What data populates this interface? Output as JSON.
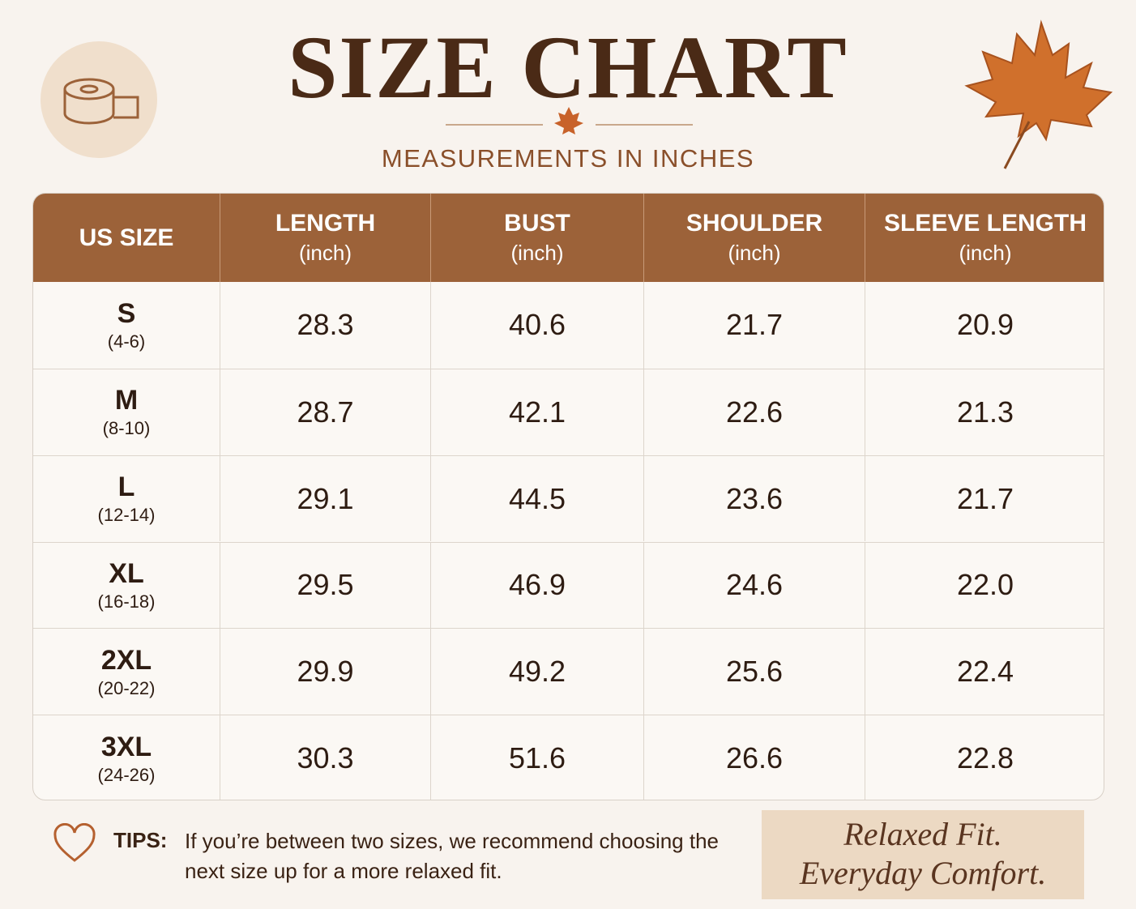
{
  "header": {
    "title": "SIZE CHART",
    "subtitle": "MEASUREMENTS IN INCHES"
  },
  "table": {
    "headers": [
      {
        "label": "US SIZE"
      },
      {
        "label": "LENGTH",
        "unit": "(inch)"
      },
      {
        "label": "BUST",
        "unit": "(inch)"
      },
      {
        "label": "SHOULDER",
        "unit": "(inch)"
      },
      {
        "label": "SLEEVE LENGTH",
        "unit": "(inch)"
      }
    ],
    "rows": [
      {
        "size": "S",
        "range": "(4-6)",
        "values": [
          "28.3",
          "40.6",
          "21.7",
          "20.9"
        ]
      },
      {
        "size": "M",
        "range": "(8-10)",
        "values": [
          "28.7",
          "42.1",
          "22.6",
          "21.3"
        ]
      },
      {
        "size": "L",
        "range": "(12-14)",
        "values": [
          "29.1",
          "44.5",
          "23.6",
          "21.7"
        ]
      },
      {
        "size": "XL",
        "range": "(16-18)",
        "values": [
          "29.5",
          "46.9",
          "24.6",
          "22.0"
        ]
      },
      {
        "size": "2XL",
        "range": "(20-22)",
        "values": [
          "29.9",
          "49.2",
          "25.6",
          "22.4"
        ]
      },
      {
        "size": "3XL",
        "range": "(24-26)",
        "values": [
          "30.3",
          "51.6",
          "26.6",
          "22.8"
        ]
      }
    ]
  },
  "tips": {
    "label": "TIPS:",
    "text": "If you’re between two sizes, we recommend choosing the next size up for a more relaxed fit."
  },
  "tagline": [
    "Relaxed Fit.",
    "Everyday Comfort."
  ]
}
